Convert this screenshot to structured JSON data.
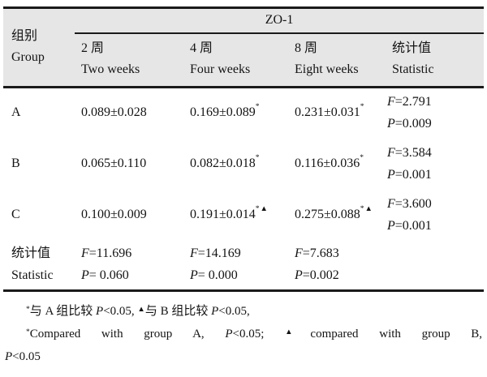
{
  "colors": {
    "header_bg": "#e6e6e6",
    "border": "#1a1a1a",
    "text": "#141414"
  },
  "table": {
    "group_col": {
      "zh": "组别",
      "en": "Group"
    },
    "span_header": "ZO-1",
    "subheaders": [
      {
        "zh": "2 周",
        "en": "Two weeks"
      },
      {
        "zh": "4 周",
        "en": "Four weeks"
      },
      {
        "zh": "8 周",
        "en": "Eight weeks"
      },
      {
        "zh": "统计值",
        "en": "Statistic"
      }
    ],
    "stat_labels": {
      "f": "F",
      "p": "P"
    },
    "rows": [
      {
        "group": "A",
        "week2": "0.089±0.028",
        "week4": "0.169±0.089",
        "week4_sup": "*",
        "week8": "0.231±0.031",
        "week8_sup": "*",
        "f_value": "=2.791",
        "p_value": "=0.009"
      },
      {
        "group": "B",
        "week2": "0.065±0.110",
        "week4": "0.082±0.018",
        "week4_sup": "*",
        "week8": "0.116±0.036",
        "week8_sup": "*",
        "f_value": "=3.584",
        "p_value": "=0.001"
      },
      {
        "group": "C",
        "week2": "0.100±0.009",
        "week4": "0.191±0.014",
        "week4_sup": "*▲",
        "week8": "0.275±0.088",
        "week8_sup": "*▲",
        "f_value": "=3.600",
        "p_value": "=0.001"
      }
    ],
    "stat_row": {
      "zh": "统计值",
      "en": "Statistic",
      "week2_f": "=11.696",
      "week2_p": "= 0.060",
      "week4_f": "=14.169",
      "week4_p": "= 0.000",
      "week8_f": "=7.683",
      "week8_p": "=0.002"
    }
  },
  "footnotes": {
    "zh": {
      "sup_a": "*",
      "text_a": "与 A 组比较 ",
      "p_a": "P",
      "cmp_a": "<0.05, ",
      "sup_b": "▲",
      "text_b": "与 B 组比较 ",
      "p_b": "P",
      "cmp_b": "<0.05,"
    },
    "en": {
      "sup_a": "*",
      "text_a": "Compared with group A, ",
      "p_a": "P",
      "cmp_a": "<0.05; ",
      "sup_b": "▲",
      "text_b": "compared with group B,",
      "p_line2": "P",
      "cmp_line2": "<0.05"
    }
  }
}
